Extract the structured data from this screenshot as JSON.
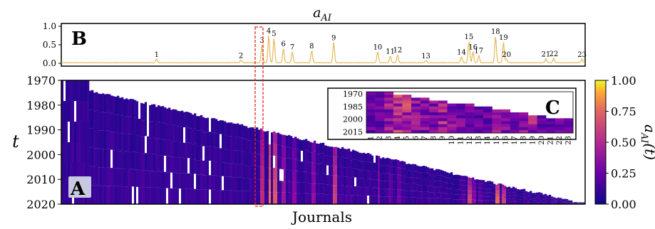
{
  "figure": {
    "top_title": "a",
    "top_title_sub": "AI",
    "panel_a_label": "A",
    "panel_b_label": "B",
    "panel_c_label": "C",
    "xlabel": "Journals",
    "ylabel": "t",
    "colorbar_label": "a_AI(t)"
  },
  "chart_data": [
    {
      "id": "panel-b",
      "type": "line",
      "title": "a_AI",
      "ylim": [
        0,
        1.0
      ],
      "yticks": [
        "0.0",
        "0.5",
        "1.0"
      ],
      "color": "#e6b85a",
      "peaks": [
        {
          "label": "1",
          "x": 0.182,
          "y": 0.1
        },
        {
          "label": "2",
          "x": 0.343,
          "y": 0.07
        },
        {
          "label": "3",
          "x": 0.383,
          "y": 0.48
        },
        {
          "label": "4",
          "x": 0.396,
          "y": 0.74
        },
        {
          "label": "5",
          "x": 0.406,
          "y": 0.66
        },
        {
          "label": "6",
          "x": 0.424,
          "y": 0.38
        },
        {
          "label": "7",
          "x": 0.441,
          "y": 0.3
        },
        {
          "label": "8",
          "x": 0.478,
          "y": 0.33
        },
        {
          "label": "9",
          "x": 0.52,
          "y": 0.55
        },
        {
          "label": "10",
          "x": 0.604,
          "y": 0.3
        },
        {
          "label": "11",
          "x": 0.628,
          "y": 0.18
        },
        {
          "label": "12",
          "x": 0.642,
          "y": 0.22
        },
        {
          "label": "13",
          "x": 0.696,
          "y": 0.06
        },
        {
          "label": "14",
          "x": 0.764,
          "y": 0.16
        },
        {
          "label": "15",
          "x": 0.778,
          "y": 0.58
        },
        {
          "label": "16",
          "x": 0.786,
          "y": 0.3
        },
        {
          "label": "17",
          "x": 0.797,
          "y": 0.2
        },
        {
          "label": "18",
          "x": 0.829,
          "y": 0.72
        },
        {
          "label": "19",
          "x": 0.844,
          "y": 0.56
        },
        {
          "label": "20",
          "x": 0.85,
          "y": 0.1
        },
        {
          "label": "21",
          "x": 0.925,
          "y": 0.11
        },
        {
          "label": "22",
          "x": 0.94,
          "y": 0.12
        },
        {
          "label": "23",
          "x": 0.994,
          "y": 0.1
        }
      ]
    },
    {
      "id": "panel-a",
      "type": "heatmap",
      "xlabel": "Journals",
      "ylabel": "t",
      "ylim": [
        1970,
        2020
      ],
      "yticks": [
        "1970",
        "1980",
        "1990",
        "2000",
        "2010",
        "2020"
      ],
      "colormap": "plasma"
    },
    {
      "id": "panel-c",
      "type": "heatmap",
      "yticks": [
        "1970",
        "1985",
        "2000",
        "2015"
      ],
      "xticks": [
        "1",
        "2",
        "3",
        "4",
        "5",
        "6",
        "7",
        "8",
        "9",
        "10",
        "11",
        "12",
        "13",
        "14",
        "15",
        "16",
        "17",
        "18",
        "19",
        "20",
        "21",
        "22",
        "23"
      ]
    },
    {
      "id": "colorbar",
      "type": "colorbar",
      "ticks": [
        "0.00",
        "0.25",
        "0.50",
        "0.75",
        "1.00"
      ],
      "range": [
        0,
        1
      ]
    }
  ]
}
